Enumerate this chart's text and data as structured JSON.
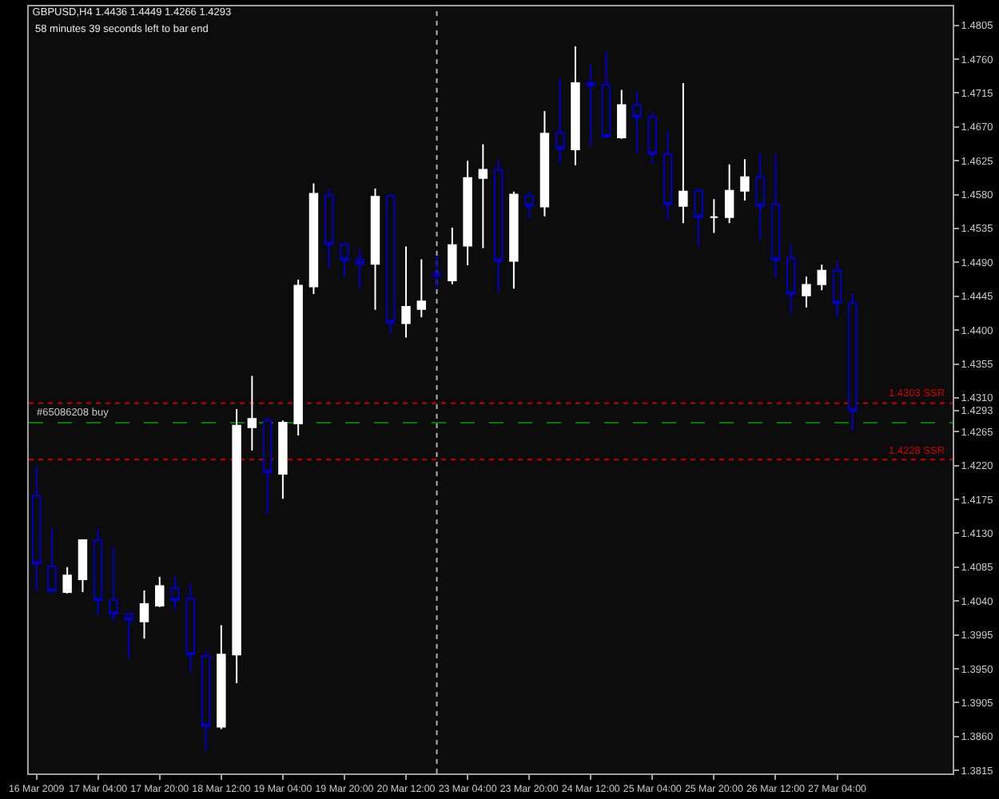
{
  "chart_data": {
    "type": "candlestick",
    "title": "GBPUSD,H4 1.4436 1.4449 1.4266 1.4293",
    "subtitle": "58 minutes 39 seconds left to bar end",
    "categories": [
      "16 Mar 2009",
      null,
      null,
      null,
      "17 Mar 04:00",
      null,
      null,
      null,
      "17 Mar 20:00",
      null,
      null,
      null,
      "18 Mar 12:00",
      null,
      null,
      null,
      "19 Mar 04:00",
      null,
      null,
      null,
      "19 Mar 20:00",
      null,
      null,
      null,
      "20 Mar 12:00",
      null,
      null,
      null,
      "23 Mar 04:00",
      null,
      null,
      null,
      "23 Mar 20:00",
      null,
      null,
      null,
      "24 Mar 12:00",
      null,
      null,
      null,
      "25 Mar 04:00",
      null,
      null,
      null,
      "25 Mar 20:00",
      null,
      null,
      null,
      "26 Mar 12:00",
      null,
      null,
      null,
      "27 Mar 04:00",
      null,
      null,
      null,
      null,
      null,
      null,
      null
    ],
    "ohlc": [
      [
        1.418,
        1.422,
        1.4054,
        1.409
      ],
      [
        1.4086,
        1.4136,
        1.4052,
        1.4053
      ],
      [
        1.4052,
        1.4085,
        1.405,
        1.4074
      ],
      [
        1.4069,
        1.4122,
        1.4052,
        1.4121
      ],
      [
        1.4121,
        1.4136,
        1.4022,
        1.4041
      ],
      [
        1.4041,
        1.4112,
        1.4013,
        1.4023
      ],
      [
        1.4023,
        1.4025,
        1.3964,
        1.4015
      ],
      [
        1.4013,
        1.4054,
        1.399,
        1.4036
      ],
      [
        1.4034,
        1.4072,
        1.4032,
        1.406
      ],
      [
        1.4057,
        1.4072,
        1.4029,
        1.4041
      ],
      [
        1.4043,
        1.4064,
        1.3946,
        1.3969
      ],
      [
        1.3967,
        1.3974,
        1.3841,
        1.3874
      ],
      [
        1.3873,
        1.4008,
        1.387,
        1.3969
      ],
      [
        1.3969,
        1.4295,
        1.3931,
        1.4273
      ],
      [
        1.4271,
        1.4339,
        1.424,
        1.4282
      ],
      [
        1.428,
        1.4283,
        1.4156,
        1.4211
      ],
      [
        1.4209,
        1.428,
        1.4176,
        1.4277
      ],
      [
        1.4276,
        1.4467,
        1.426,
        1.4459
      ],
      [
        1.4458,
        1.4595,
        1.4448,
        1.4581
      ],
      [
        1.4579,
        1.4588,
        1.4483,
        1.4514
      ],
      [
        1.4514,
        1.4517,
        1.4471,
        1.4493
      ],
      [
        1.4494,
        1.4507,
        1.4455,
        1.4488
      ],
      [
        1.4488,
        1.4588,
        1.4427,
        1.4577
      ],
      [
        1.4578,
        1.458,
        1.4395,
        1.441
      ],
      [
        1.4409,
        1.4511,
        1.439,
        1.4431
      ],
      [
        1.4428,
        1.4494,
        1.4417,
        1.4438
      ],
      [
        1.4475,
        1.4499,
        1.4455,
        1.4473
      ],
      [
        1.4466,
        1.4536,
        1.4461,
        1.4513
      ],
      [
        1.4512,
        1.4625,
        1.4486,
        1.4602
      ],
      [
        1.4602,
        1.4647,
        1.4509,
        1.4613
      ],
      [
        1.4613,
        1.4626,
        1.445,
        1.4492
      ],
      [
        1.4492,
        1.4584,
        1.4455,
        1.458
      ],
      [
        1.4578,
        1.4584,
        1.4548,
        1.4565
      ],
      [
        1.4564,
        1.4691,
        1.4551,
        1.4661
      ],
      [
        1.4662,
        1.4734,
        1.4621,
        1.4641
      ],
      [
        1.464,
        1.4777,
        1.4619,
        1.4728
      ],
      [
        1.4728,
        1.4752,
        1.4644,
        1.4725
      ],
      [
        1.4726,
        1.477,
        1.4655,
        1.4657
      ],
      [
        1.4656,
        1.4719,
        1.4654,
        1.4699
      ],
      [
        1.4699,
        1.4717,
        1.4635,
        1.4683
      ],
      [
        1.4683,
        1.4689,
        1.4621,
        1.4634
      ],
      [
        1.4634,
        1.4664,
        1.4546,
        1.4567
      ],
      [
        1.4565,
        1.4728,
        1.4542,
        1.4584
      ],
      [
        1.4585,
        1.4588,
        1.4511,
        1.455
      ],
      [
        1.455,
        1.4574,
        1.4529,
        1.455
      ],
      [
        1.455,
        1.462,
        1.4542,
        1.4585
      ],
      [
        1.4585,
        1.4627,
        1.4572,
        1.4603
      ],
      [
        1.4603,
        1.4635,
        1.452,
        1.4565
      ],
      [
        1.4567,
        1.4634,
        1.4469,
        1.4493
      ],
      [
        1.4495,
        1.4514,
        1.4422,
        1.4448
      ],
      [
        1.4446,
        1.4471,
        1.443,
        1.446
      ],
      [
        1.4461,
        1.4487,
        1.4453,
        1.4479
      ],
      [
        1.4479,
        1.4492,
        1.4417,
        1.4436
      ],
      [
        1.4436,
        1.4449,
        1.4266,
        1.4293
      ],
      null,
      null,
      null,
      null,
      null,
      null
    ],
    "colors": [
      "#0000cc",
      "#0000cc",
      "#ffffff",
      "#ffffff",
      "#0000cc",
      "#0000cc",
      "#0000cc",
      "#ffffff",
      "#ffffff",
      "#0000cc",
      "#0000cc",
      "#0000cc",
      "#ffffff",
      "#ffffff",
      "#ffffff",
      "#0000cc",
      "#ffffff",
      "#ffffff",
      "#ffffff",
      "#0000cc",
      "#0000cc",
      "#0000cc",
      "#ffffff",
      "#0000cc",
      "#ffffff",
      "#ffffff",
      "#0000cc",
      "#ffffff",
      "#ffffff",
      "#ffffff",
      "#0000cc",
      "#ffffff",
      "#0000cc",
      "#ffffff",
      "#0000cc",
      "#ffffff",
      "#0000cc",
      "#0000cc",
      "#ffffff",
      "#0000cc",
      "#0000cc",
      "#0000cc",
      "#ffffff",
      "#0000cc",
      "#ffffff",
      "#ffffff",
      "#ffffff",
      "#0000cc",
      "#0000cc",
      "#0000cc",
      "#ffffff",
      "#ffffff",
      "#0000cc",
      "#0000cc",
      null,
      null,
      null,
      null,
      null,
      null
    ],
    "ylim": [
      1.3811,
      1.483
    ],
    "yticks": [
      1.4805,
      {
        "value": 1.476,
        "label": "1.4760"
      },
      1.4715,
      {
        "value": 1.467,
        "label": "1.4670"
      },
      1.4625,
      {
        "value": 1.458,
        "label": "1.4580"
      },
      1.4535,
      {
        "value": 1.449,
        "label": "1.4490"
      },
      1.4445,
      {
        "value": 1.44,
        "label": "1.4400"
      },
      1.4355,
      {
        "value": 1.431,
        "label": "1.4310"
      },
      1.4293,
      1.4265,
      {
        "value": 1.422,
        "label": "1.4220"
      },
      1.4175,
      {
        "value": 1.413,
        "label": "1.4130"
      },
      1.4085,
      {
        "value": 1.404,
        "label": "1.4040"
      },
      1.3995,
      {
        "value": 1.395,
        "label": "1.3950"
      },
      1.3905,
      {
        "value": 1.386,
        "label": "1.3860"
      },
      1.3815
    ],
    "ref_lines": [
      {
        "axis": "y",
        "value": 1.4303,
        "label": "1.4303 SSR",
        "color": "#d00000",
        "line_style": "dotted"
      },
      {
        "axis": "y",
        "value": 1.4228,
        "label": "1.4228 SSR",
        "color": "#d00000",
        "line_style": "dotted"
      },
      {
        "axis": "y",
        "value": 1.4277,
        "label": "#65086208 buy",
        "color": "#008000",
        "line_style": "dashed"
      }
    ]
  }
}
